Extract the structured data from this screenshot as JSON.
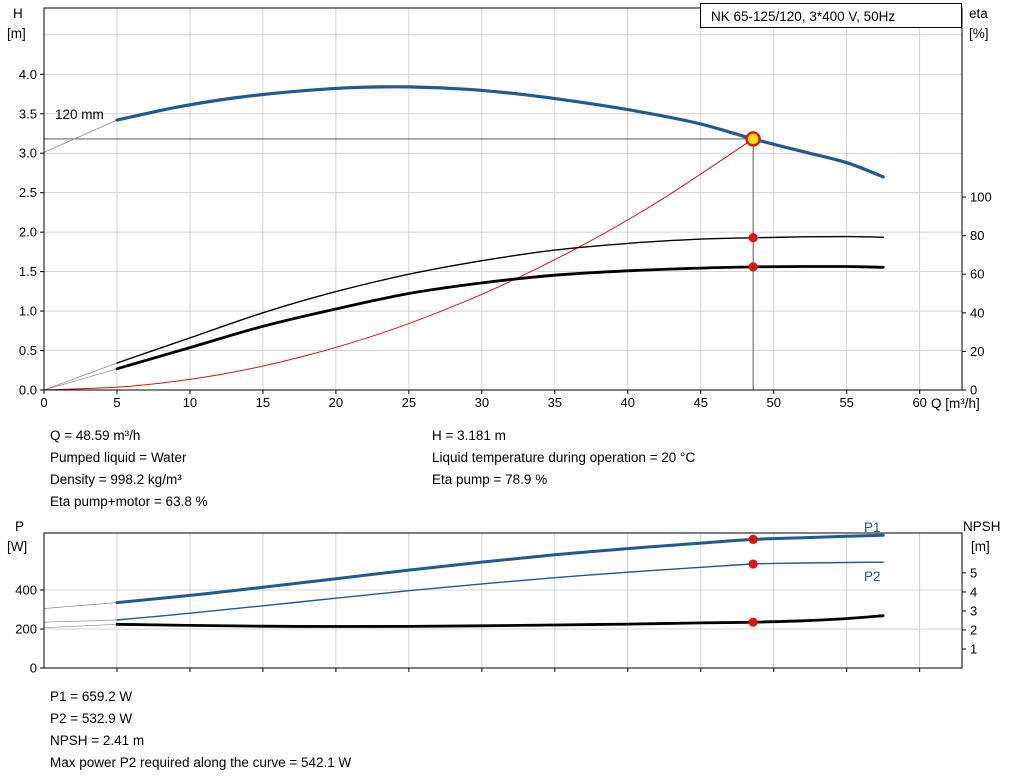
{
  "title": {
    "box_label": "NK 65-125/120, 3*400 V, 50Hz"
  },
  "impeller_label": "120 mm",
  "axis_labels": {
    "h": [
      "H",
      "[m]"
    ],
    "eta": [
      "eta",
      "[%]"
    ],
    "q": "Q [m³/h]",
    "p": [
      "P",
      "[W]"
    ],
    "npsh": [
      "NPSH",
      "[m]"
    ]
  },
  "curve_labels": {
    "p1": "P1",
    "p2": "P2"
  },
  "info_top": {
    "left": [
      "Q = 48.59 m³/h",
      "Pumped liquid = Water",
      "Density = 998.2 kg/m³",
      "Eta pump+motor = 63.8 %"
    ],
    "right": [
      "H = 3.181 m",
      "Liquid temperature during operation = 20 °C",
      "Eta pump = 78.9 %"
    ]
  },
  "info_bottom": [
    "P1 = 659.2 W",
    "P2 = 532.9 W",
    "NPSH = 2.41 m",
    "Max power P2 required along the curve = 542.1 W"
  ],
  "colors": {
    "blue": "#1d5a96",
    "black": "#000000",
    "red": "#dd1111",
    "gray_conn": "#8c8c8c",
    "grid": "#c8c8c8",
    "duty_line": "#444444",
    "marker_red": "#e01313",
    "duty_fill": "#ffdf00"
  },
  "chart_data": [
    {
      "type": "line",
      "name": "qh-eta-chart",
      "title": "NK 65-125/120, 3*400 V, 50Hz",
      "x_axis": {
        "label": "Q [m³/h]",
        "min": 0,
        "max": 62.9,
        "label_ticks": [
          0,
          5,
          10,
          15,
          20,
          25,
          30,
          35,
          40,
          45,
          50,
          55,
          60
        ],
        "grid_ticks": [
          5,
          10,
          15,
          20,
          25,
          30,
          35,
          40,
          45,
          50,
          55,
          60
        ]
      },
      "y_left": {
        "label": "H [m]",
        "min": 0,
        "max": 4.84,
        "decimals": 1,
        "label_ticks": [
          0,
          0.5,
          1,
          1.5,
          2,
          2.5,
          3,
          3.5,
          4
        ],
        "grid_ticks": [
          0.5,
          1,
          1.5,
          2,
          2.5,
          3,
          3.5,
          4,
          4.5
        ]
      },
      "y_right": {
        "label": "eta [%]",
        "min": 0,
        "max": 198,
        "label_ticks": [
          0,
          20,
          40,
          60,
          80,
          100
        ]
      },
      "duty_point": {
        "q": 48.59,
        "h": 3.181
      },
      "series": [
        {
          "name": "impeller-connector",
          "axis": "left",
          "color_key": "gray_conn",
          "width": 0.8,
          "points": [
            [
              0,
              3.01
            ],
            [
              5,
              3.42
            ]
          ]
        },
        {
          "name": "eta-pump-connector",
          "axis": "right",
          "color_key": "gray_conn",
          "width": 0.7,
          "points": [
            [
              0,
              0
            ],
            [
              5,
              14
            ]
          ]
        },
        {
          "name": "eta-pump-motor-connector",
          "axis": "right",
          "color_key": "gray_conn",
          "width": 0.7,
          "points": [
            [
              0,
              0
            ],
            [
              5,
              11
            ]
          ]
        },
        {
          "name": "system-curve",
          "axis": "left",
          "color_key": "red",
          "width": 1,
          "points": [
            [
              0,
              0
            ],
            [
              6,
              0.049
            ],
            [
              12,
              0.194
            ],
            [
              18,
              0.437
            ],
            [
              24,
              0.776
            ],
            [
              30,
              1.213
            ],
            [
              36,
              1.746
            ],
            [
              42,
              2.377
            ],
            [
              48.59,
              3.181
            ]
          ]
        },
        {
          "name": "eta-pump-curve",
          "axis": "right",
          "color_key": "black",
          "width": 1.4,
          "points": [
            [
              5,
              14
            ],
            [
              10,
              27
            ],
            [
              15,
              40
            ],
            [
              20,
              51
            ],
            [
              25,
              60
            ],
            [
              30,
              67
            ],
            [
              35,
              72.5
            ],
            [
              40,
              76
            ],
            [
              45,
              78.2
            ],
            [
              48.59,
              78.9
            ],
            [
              52,
              79.4
            ],
            [
              55,
              79.5
            ],
            [
              57.5,
              79.2
            ]
          ]
        },
        {
          "name": "eta-pump-motor-curve",
          "axis": "right",
          "color_key": "black",
          "width": 2.8,
          "points": [
            [
              5,
              11
            ],
            [
              10,
              22
            ],
            [
              15,
              33
            ],
            [
              20,
              42
            ],
            [
              25,
              50
            ],
            [
              30,
              55.5
            ],
            [
              35,
              59.5
            ],
            [
              40,
              61.8
            ],
            [
              45,
              63.2
            ],
            [
              48.59,
              63.8
            ],
            [
              52,
              64
            ],
            [
              55,
              64
            ],
            [
              57.5,
              63.6
            ]
          ]
        },
        {
          "name": "pump-curve-120mm",
          "axis": "left",
          "color_key": "blue",
          "width": 3.2,
          "points": [
            [
              5,
              3.42
            ],
            [
              9,
              3.58
            ],
            [
              13,
              3.7
            ],
            [
              17,
              3.78
            ],
            [
              21,
              3.83
            ],
            [
              25,
              3.84
            ],
            [
              29,
              3.81
            ],
            [
              33,
              3.74
            ],
            [
              37,
              3.64
            ],
            [
              41,
              3.52
            ],
            [
              45,
              3.37
            ],
            [
              48.59,
              3.181
            ],
            [
              52,
              3.02
            ],
            [
              55,
              2.88
            ],
            [
              57.5,
              2.7
            ]
          ]
        }
      ],
      "markers": [
        {
          "name": "eta-pump-duty-dot",
          "axis": "right",
          "q": 48.59,
          "v": 78.9,
          "r": 4.6,
          "fill": "marker_red"
        },
        {
          "name": "eta-pump-motor-duty-dot",
          "axis": "right",
          "q": 48.59,
          "v": 63.8,
          "r": 4.6,
          "fill": "marker_red"
        },
        {
          "name": "duty-point-marker",
          "axis": "left",
          "q": 48.59,
          "v": 3.181,
          "r": 6.5,
          "fill": "duty_fill",
          "stroke": "marker_red",
          "sw": 2.4
        }
      ]
    },
    {
      "type": "line",
      "name": "power-npsh-chart",
      "x_axis": {
        "label": "",
        "min": 0,
        "max": 62.9,
        "label_ticks": [],
        "grid_ticks": [
          5,
          10,
          15,
          20,
          25,
          30,
          35,
          40,
          45,
          50,
          55,
          60
        ]
      },
      "y_left": {
        "label": "P [W]",
        "min": 0,
        "max": 692,
        "label_ticks": [
          0,
          200,
          400
        ],
        "grid_ticks": [
          200,
          400
        ]
      },
      "y_right": {
        "label": "NPSH [m]",
        "min": 0,
        "max": 7.1,
        "label_ticks": [
          1,
          2,
          3,
          4,
          5
        ]
      },
      "series": [
        {
          "name": "p1-connector",
          "axis": "left",
          "color_key": "gray_conn",
          "width": 0.7,
          "points": [
            [
              0,
              305
            ],
            [
              5,
              335
            ]
          ]
        },
        {
          "name": "p2-connector",
          "axis": "left",
          "color_key": "gray_conn",
          "width": 0.7,
          "points": [
            [
              0,
              235
            ],
            [
              5,
              246
            ]
          ]
        },
        {
          "name": "npsh-connector",
          "axis": "right",
          "color_key": "gray_conn",
          "width": 0.7,
          "points": [
            [
              0,
              2.12
            ],
            [
              5,
              2.3
            ]
          ]
        },
        {
          "name": "npsh-curve",
          "axis": "right",
          "color_key": "black",
          "width": 2.8,
          "points": [
            [
              5,
              2.3
            ],
            [
              10,
              2.24
            ],
            [
              15,
              2.2
            ],
            [
              20,
              2.18
            ],
            [
              25,
              2.19
            ],
            [
              30,
              2.22
            ],
            [
              35,
              2.26
            ],
            [
              40,
              2.31
            ],
            [
              45,
              2.37
            ],
            [
              48.59,
              2.41
            ],
            [
              52,
              2.48
            ],
            [
              55,
              2.6
            ],
            [
              57.5,
              2.75
            ]
          ]
        },
        {
          "name": "p2-curve",
          "axis": "left",
          "color_key": "blue",
          "width": 1.4,
          "points": [
            [
              5,
              246
            ],
            [
              10,
              281
            ],
            [
              15,
              319
            ],
            [
              20,
              358
            ],
            [
              25,
              396
            ],
            [
              30,
              431
            ],
            [
              35,
              463
            ],
            [
              40,
              491
            ],
            [
              45,
              516
            ],
            [
              48.59,
              532.9
            ],
            [
              52,
              538
            ],
            [
              55,
              541
            ],
            [
              57.5,
              542.1
            ]
          ]
        },
        {
          "name": "p1-curve",
          "axis": "left",
          "color_key": "blue",
          "width": 3,
          "points": [
            [
              5,
              335
            ],
            [
              10,
              372
            ],
            [
              15,
              414
            ],
            [
              20,
              458
            ],
            [
              25,
              502
            ],
            [
              30,
              543
            ],
            [
              35,
              580
            ],
            [
              40,
              612
            ],
            [
              45,
              640
            ],
            [
              48.59,
              659.2
            ],
            [
              52,
              668
            ],
            [
              55,
              675
            ],
            [
              57.5,
              680
            ]
          ]
        }
      ],
      "markers": [
        {
          "name": "p1-duty-dot",
          "axis": "left",
          "q": 48.59,
          "v": 659.2,
          "r": 4.6,
          "fill": "marker_red"
        },
        {
          "name": "p2-duty-dot",
          "axis": "left",
          "q": 48.59,
          "v": 532.9,
          "r": 4.6,
          "fill": "marker_red"
        },
        {
          "name": "npsh-duty-dot",
          "axis": "right",
          "q": 48.59,
          "v": 2.41,
          "r": 4.6,
          "fill": "marker_red"
        }
      ]
    }
  ]
}
